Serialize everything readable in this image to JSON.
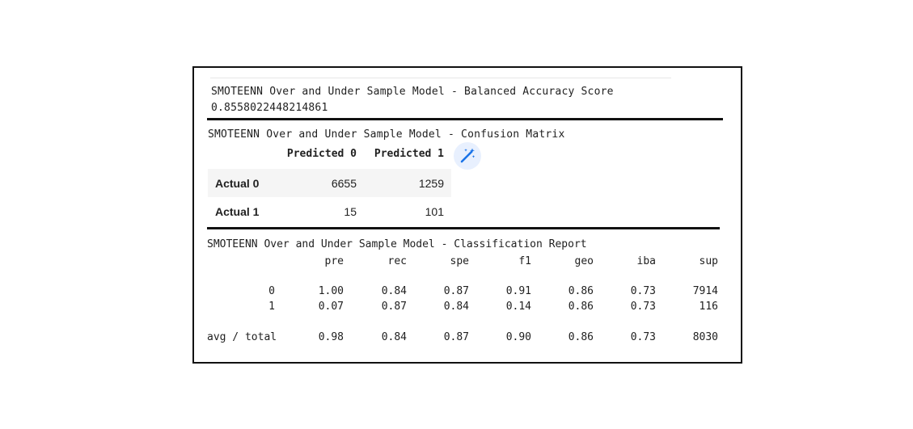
{
  "balanced_accuracy": {
    "title": "SMOTEENN Over and Under Sample Model - Balanced Accuracy Score",
    "value": "0.8558022448214861"
  },
  "confusion_matrix": {
    "title": "SMOTEENN Over and Under Sample Model - Confusion Matrix",
    "columns": [
      "Predicted 0",
      "Predicted 1"
    ],
    "rows": [
      {
        "label": "Actual 0",
        "values": [
          "6655",
          "1259"
        ]
      },
      {
        "label": "Actual 1",
        "values": [
          "15",
          "101"
        ]
      }
    ],
    "wand_icon": "magic-wand-icon",
    "wand_color": "#1a73e8"
  },
  "classification_report": {
    "title": "SMOTEENN Over and Under Sample Model - Classification Report",
    "headers": [
      "pre",
      "rec",
      "spe",
      "f1",
      "geo",
      "iba",
      "sup"
    ],
    "rows": [
      {
        "label": "0",
        "values": [
          "1.00",
          "0.84",
          "0.87",
          "0.91",
          "0.86",
          "0.73",
          "7914"
        ]
      },
      {
        "label": "1",
        "values": [
          "0.07",
          "0.87",
          "0.84",
          "0.14",
          "0.86",
          "0.73",
          "116"
        ]
      },
      {
        "label": "avg / total",
        "values": [
          "0.98",
          "0.84",
          "0.87",
          "0.90",
          "0.86",
          "0.73",
          "8030"
        ]
      }
    ]
  }
}
